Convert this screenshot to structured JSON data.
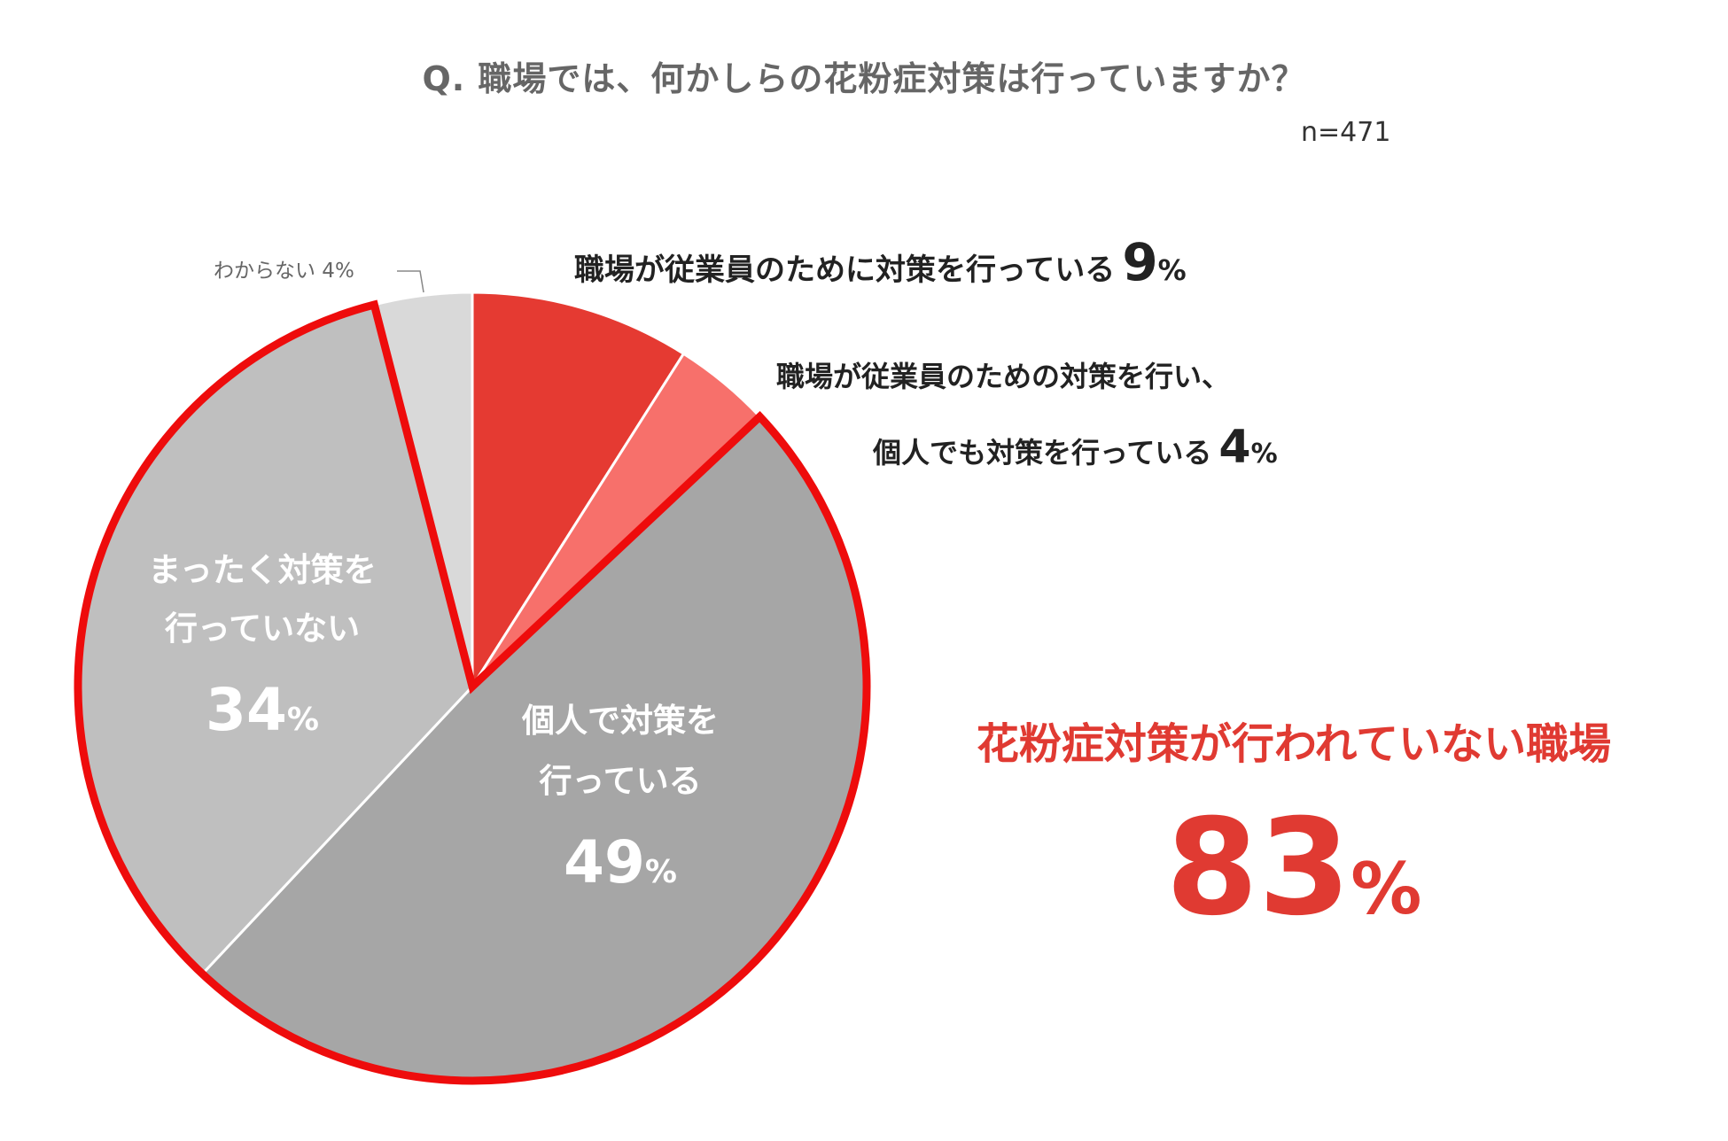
{
  "question": "Q.  職場では、何かしらの花粉症対策は行っていますか？",
  "sample": "n=471",
  "chart_data": {
    "type": "pie",
    "title": "Q.  職場では、何かしらの花粉症対策は行っていますか？",
    "n": "n=471",
    "start_angle_deg": 0,
    "direction": "clockwise",
    "slices": [
      {
        "label": "職場が従業員のために対策を行っている",
        "value": 9,
        "color": "#e53a32"
      },
      {
        "label": "職場が従業員のための対策を行い、個人でも対策を行っている",
        "value": 4,
        "color": "#f7706b"
      },
      {
        "label": "個人で対策を行っている",
        "value": 49,
        "color": "#a6a6a6"
      },
      {
        "label": "まったく対策を行っていない",
        "value": 34,
        "color": "#bfbfbf"
      },
      {
        "label": "わからない",
        "value": 4,
        "color": "#d9d9d9"
      }
    ],
    "highlight": {
      "slices": [
        2,
        3
      ],
      "outline_color": "#ee0c0c"
    }
  },
  "labels": {
    "s1": {
      "text": "職場が従業員のために対策を行っている",
      "value": "9",
      "unit": "%"
    },
    "s2": {
      "line1": "職場が従業員のための対策を行い、",
      "line2": "個人でも対策を行っている",
      "value": "4",
      "unit": "%"
    },
    "s3": {
      "line1": "個人で対策を",
      "line2": "行っている",
      "value": "49",
      "unit": "%"
    },
    "s4": {
      "line1": "まったく対策を",
      "line2": "行っていない",
      "value": "34",
      "unit": "%"
    },
    "s5": {
      "text": "わからない 4%"
    }
  },
  "summary": {
    "title": "花粉症対策が行われていない職場",
    "value": "83",
    "unit": "%"
  }
}
